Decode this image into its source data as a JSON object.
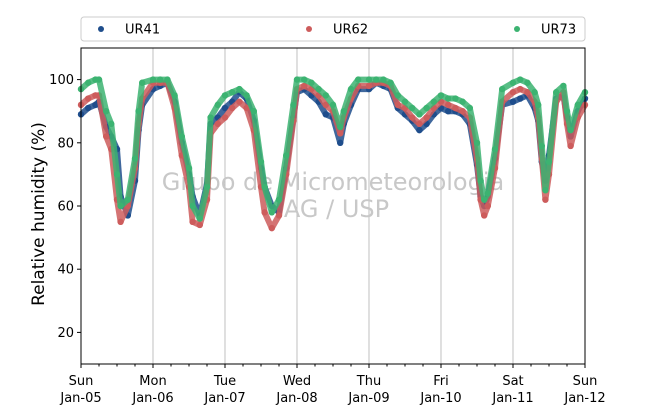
{
  "chart_data": {
    "type": "scatter",
    "title": "",
    "xlabel": "",
    "ylabel": "Relative humidity (%)",
    "ylim": [
      10,
      110
    ],
    "y_ticks": [
      20,
      40,
      60,
      80,
      100
    ],
    "xlim": [
      0,
      7
    ],
    "x_ticks": [
      {
        "day": 0,
        "line1": "Sun",
        "line2": "Jan-05"
      },
      {
        "day": 1,
        "line1": "Mon",
        "line2": "Jan-06"
      },
      {
        "day": 2,
        "line1": "Tue",
        "line2": "Jan-07"
      },
      {
        "day": 3,
        "line1": "Wed",
        "line2": "Jan-08"
      },
      {
        "day": 4,
        "line1": "Thu",
        "line2": "Jan-09"
      },
      {
        "day": 5,
        "line1": "Fri",
        "line2": "Jan-10"
      },
      {
        "day": 6,
        "line1": "Sat",
        "line2": "Jan-11"
      },
      {
        "day": 7,
        "line1": "Sun",
        "line2": "Jan-12"
      }
    ],
    "grid": "vertical-major",
    "legend": "top, above plot",
    "watermark": [
      "Grupo de Micrometeorologia",
      "IAG / USP"
    ],
    "series": [
      {
        "name": "UR41",
        "color": "#1f4e8c",
        "x": [
          0,
          0.1,
          0.2,
          0.25,
          0.35,
          0.42,
          0.5,
          0.55,
          0.65,
          0.75,
          0.8,
          0.85,
          1.0,
          1.1,
          1.2,
          1.3,
          1.4,
          1.5,
          1.55,
          1.65,
          1.75,
          1.8,
          1.9,
          2.0,
          2.1,
          2.2,
          2.3,
          2.4,
          2.5,
          2.55,
          2.65,
          2.75,
          2.85,
          2.95,
          3.0,
          3.1,
          3.2,
          3.3,
          3.4,
          3.5,
          3.6,
          3.65,
          3.75,
          3.85,
          4.0,
          4.1,
          4.2,
          4.3,
          4.4,
          4.5,
          4.6,
          4.7,
          4.8,
          4.9,
          5.0,
          5.1,
          5.2,
          5.3,
          5.4,
          5.5,
          5.55,
          5.6,
          5.65,
          5.75,
          5.85,
          6.0,
          6.1,
          6.2,
          6.3,
          6.35,
          6.4,
          6.45,
          6.5,
          6.6,
          6.7,
          6.75,
          6.8,
          6.9,
          7.0
        ],
        "values": [
          89,
          91,
          92,
          93,
          85,
          82,
          78,
          63,
          57,
          68,
          84,
          92,
          97,
          98,
          99,
          93,
          80,
          70,
          63,
          57,
          67,
          86,
          88,
          91,
          93,
          96,
          94,
          87,
          72,
          66,
          60,
          58,
          72,
          88,
          96,
          97,
          95,
          93,
          89,
          88,
          80,
          86,
          92,
          97,
          97,
          99,
          98,
          97,
          91,
          89,
          87,
          84,
          86,
          89,
          91,
          90,
          90,
          89,
          86,
          73,
          63,
          60,
          63,
          75,
          92,
          93,
          94,
          95,
          91,
          87,
          74,
          68,
          76,
          94,
          95,
          88,
          82,
          90,
          94
        ]
      },
      {
        "name": "UR62",
        "color": "#cd5c5c",
        "x": [
          0,
          0.1,
          0.2,
          0.25,
          0.35,
          0.42,
          0.5,
          0.55,
          0.65,
          0.75,
          0.8,
          0.85,
          1.0,
          1.1,
          1.2,
          1.3,
          1.4,
          1.5,
          1.55,
          1.65,
          1.75,
          1.8,
          1.9,
          2.0,
          2.1,
          2.2,
          2.3,
          2.4,
          2.5,
          2.55,
          2.65,
          2.75,
          2.85,
          2.95,
          3.0,
          3.1,
          3.2,
          3.3,
          3.4,
          3.5,
          3.6,
          3.65,
          3.75,
          3.85,
          4.0,
          4.1,
          4.2,
          4.3,
          4.4,
          4.5,
          4.6,
          4.7,
          4.8,
          4.9,
          5.0,
          5.1,
          5.2,
          5.3,
          5.4,
          5.5,
          5.55,
          5.6,
          5.65,
          5.75,
          5.85,
          6.0,
          6.1,
          6.2,
          6.3,
          6.35,
          6.4,
          6.45,
          6.5,
          6.6,
          6.7,
          6.75,
          6.8,
          6.9,
          7.0
        ],
        "values": [
          92,
          94,
          95,
          95,
          82,
          78,
          62,
          55,
          60,
          72,
          86,
          94,
          99,
          99,
          99,
          91,
          76,
          66,
          55,
          54,
          62,
          83,
          86,
          88,
          91,
          93,
          91,
          84,
          66,
          58,
          53,
          57,
          70,
          87,
          97,
          98,
          97,
          95,
          92,
          90,
          83,
          88,
          94,
          98,
          98,
          99,
          99,
          98,
          92,
          91,
          88,
          86,
          88,
          91,
          93,
          92,
          91,
          90,
          88,
          75,
          62,
          57,
          60,
          72,
          93,
          96,
          97,
          96,
          93,
          88,
          75,
          62,
          70,
          93,
          96,
          86,
          79,
          88,
          92
        ]
      },
      {
        "name": "UR73",
        "color": "#3cb371",
        "x": [
          0,
          0.1,
          0.2,
          0.25,
          0.35,
          0.42,
          0.5,
          0.55,
          0.65,
          0.75,
          0.8,
          0.85,
          1.0,
          1.1,
          1.2,
          1.3,
          1.4,
          1.5,
          1.55,
          1.65,
          1.75,
          1.8,
          1.9,
          2.0,
          2.1,
          2.2,
          2.3,
          2.4,
          2.5,
          2.55,
          2.65,
          2.75,
          2.85,
          2.95,
          3.0,
          3.1,
          3.2,
          3.3,
          3.4,
          3.5,
          3.6,
          3.65,
          3.75,
          3.85,
          4.0,
          4.1,
          4.2,
          4.3,
          4.4,
          4.5,
          4.6,
          4.7,
          4.8,
          4.9,
          5.0,
          5.1,
          5.2,
          5.3,
          5.4,
          5.5,
          5.55,
          5.6,
          5.65,
          5.75,
          5.85,
          6.0,
          6.1,
          6.2,
          6.3,
          6.35,
          6.4,
          6.45,
          6.5,
          6.6,
          6.7,
          6.75,
          6.8,
          6.9,
          7.0
        ],
        "values": [
          97,
          99,
          100,
          100,
          90,
          86,
          70,
          60,
          62,
          75,
          90,
          99,
          100,
          100,
          100,
          95,
          82,
          72,
          60,
          56,
          66,
          88,
          92,
          95,
          96,
          97,
          95,
          90,
          74,
          66,
          58,
          62,
          76,
          92,
          100,
          100,
          99,
          97,
          95,
          92,
          85,
          90,
          97,
          100,
          100,
          100,
          100,
          99,
          95,
          93,
          91,
          89,
          91,
          93,
          95,
          94,
          94,
          93,
          91,
          80,
          68,
          62,
          64,
          78,
          97,
          99,
          100,
          99,
          96,
          92,
          79,
          65,
          74,
          96,
          98,
          90,
          84,
          92,
          96
        ]
      }
    ]
  }
}
